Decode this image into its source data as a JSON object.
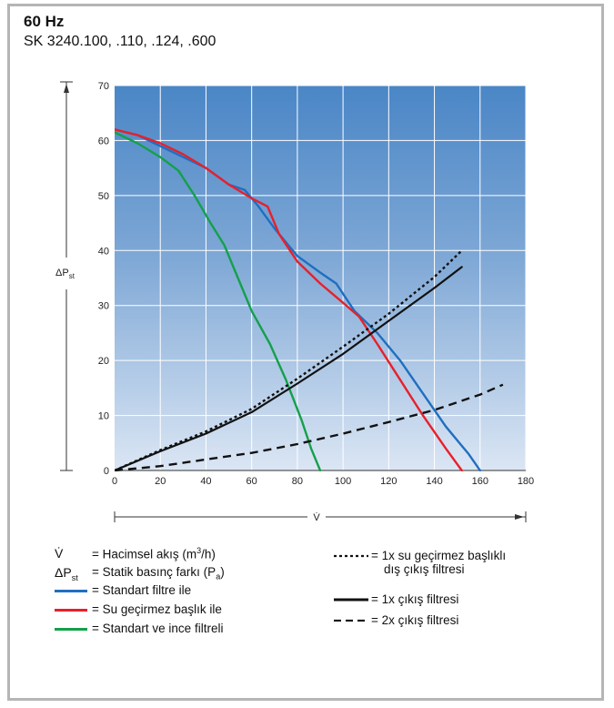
{
  "header": {
    "title": "60 Hz",
    "subtitle": "SK 3240.100, .110, .124, .600"
  },
  "chart_data": {
    "type": "line",
    "title": "",
    "xlabel": "V̇",
    "ylabel": "ΔPst",
    "xlim": [
      0,
      180
    ],
    "ylim": [
      0,
      70
    ],
    "x_ticks": [
      "0",
      "20",
      "40",
      "60",
      "80",
      "100",
      "120",
      "140",
      "160",
      "180"
    ],
    "y_ticks": [
      "0",
      "10",
      "20",
      "30",
      "40",
      "50",
      "60",
      "70"
    ],
    "grid": true,
    "series": [
      {
        "name": "Standart filtre ile",
        "color": "#1f6fc0",
        "style": "solid",
        "x": [
          0,
          10,
          20,
          30,
          40,
          50,
          57,
          63,
          70,
          80,
          90,
          97,
          105,
          115,
          125,
          135,
          145,
          155,
          160
        ],
        "y": [
          62,
          61,
          59,
          57,
          55,
          52,
          51,
          48,
          44,
          39,
          36,
          34,
          29,
          25,
          20,
          14,
          8,
          3,
          0
        ]
      },
      {
        "name": "Su geçirmez başlık ile",
        "color": "#e8202a",
        "style": "solid",
        "x": [
          0,
          10,
          20,
          30,
          40,
          50,
          60,
          67,
          72,
          80,
          90,
          100,
          107,
          115,
          125,
          135,
          145,
          152
        ],
        "y": [
          62,
          61,
          59.5,
          57.5,
          55,
          52,
          49.5,
          48,
          43,
          38,
          34,
          30.5,
          28,
          23,
          16.5,
          10,
          4,
          0
        ]
      },
      {
        "name": "Standart ve ince filtreli",
        "color": "#14a04a",
        "style": "solid",
        "x": [
          0,
          10,
          20,
          28,
          35,
          42,
          48,
          55,
          60,
          68,
          75,
          82,
          86,
          90
        ],
        "y": [
          61.5,
          59.5,
          57,
          54.5,
          50,
          45,
          41,
          34,
          29,
          23,
          16.5,
          9,
          4,
          0
        ]
      },
      {
        "name": "1x su geçirmez başlıklı dış çıkış filtresi",
        "color": "#111111",
        "style": "dotted",
        "x": [
          0,
          20,
          40,
          60,
          80,
          100,
          120,
          140,
          152
        ],
        "y": [
          0,
          3.7,
          7.1,
          11.2,
          16.7,
          22.5,
          28.5,
          35.2,
          40
        ]
      },
      {
        "name": "1x çıkış filtresi",
        "color": "#111111",
        "style": "solid",
        "x": [
          0,
          20,
          40,
          60,
          80,
          100,
          120,
          140,
          152
        ],
        "y": [
          0,
          3.5,
          6.7,
          10.6,
          15.8,
          21.2,
          27.2,
          33.2,
          37
        ]
      },
      {
        "name": "2x çıkış filtresi",
        "color": "#111111",
        "style": "dashed",
        "x": [
          0,
          20,
          40,
          60,
          80,
          100,
          120,
          140,
          160,
          170
        ],
        "y": [
          0,
          0.8,
          2,
          3.2,
          4.8,
          6.7,
          8.8,
          11,
          13.8,
          15.6
        ]
      }
    ]
  },
  "legend": {
    "left": [
      {
        "sym": "V̇",
        "text": "= Hacimsel akış (m³/h)"
      },
      {
        "sym": "ΔPst",
        "text": "= Statik basınç farkı (Pa)"
      },
      {
        "line": "#1f6fc0",
        "text": "= Standart filtre ile"
      },
      {
        "line": "#e8202a",
        "text": "= Su geçirmez başlık ile"
      },
      {
        "line": "#14a04a",
        "text": "= Standart ve ince filtreli"
      }
    ],
    "right": [
      {
        "style": "dotted",
        "text": "= 1x su geçirmez başlıklı",
        "text2": "dış çıkış filtresi"
      },
      {
        "style": "solid",
        "text": "= 1x çıkış filtresi"
      },
      {
        "style": "dashed",
        "text": "= 2x çıkış filtresi"
      }
    ]
  }
}
